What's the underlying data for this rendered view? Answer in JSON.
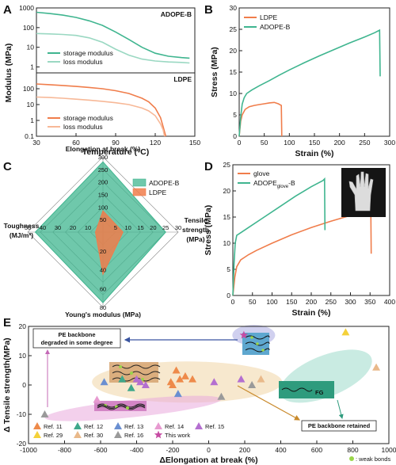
{
  "colors": {
    "adope": "#3fb58f",
    "adope_light": "#9ad8c2",
    "ldpe": "#f07d4b",
    "ldpe_light": "#f7b897"
  },
  "panels": {
    "A": "A",
    "B": "B",
    "C": "C",
    "D": "D",
    "E": "E"
  },
  "chart_data": [
    {
      "id": "A-top",
      "type": "line",
      "panel_label": "ADOPE-B",
      "xlim": [
        30,
        150
      ],
      "ylim_log": [
        0.5,
        1000
      ],
      "yscale": "log",
      "yticks": [
        "1000",
        "100",
        "10",
        "1"
      ],
      "legend": [
        "storage modulus",
        "loss modulus"
      ],
      "series": [
        {
          "name": "storage modulus",
          "x": [
            30,
            40,
            50,
            60,
            70,
            80,
            90,
            100,
            110,
            120,
            130,
            140,
            146
          ],
          "y": [
            600,
            520,
            430,
            330,
            220,
            130,
            60,
            25,
            10,
            5,
            3.5,
            3,
            2.8
          ]
        },
        {
          "name": "loss modulus",
          "x": [
            30,
            40,
            50,
            60,
            70,
            80,
            90,
            100,
            110,
            120,
            130,
            140,
            146
          ],
          "y": [
            50,
            48,
            45,
            40,
            30,
            18,
            8,
            4,
            2.5,
            2,
            1.8,
            1.7,
            1.6
          ]
        }
      ]
    },
    {
      "id": "A-bottom",
      "type": "line",
      "panel_label": "LDPE",
      "xlabel": "Temperature (°C)",
      "ylabel": "Modulus (MPa)",
      "xlim": [
        30,
        150
      ],
      "ylim_log": [
        0.1,
        1000
      ],
      "yscale": "log",
      "xticks": [
        "30",
        "60",
        "90",
        "120",
        "150"
      ],
      "yticks": [
        "100",
        "10",
        "1",
        "0.1"
      ],
      "legend": [
        "storage modulus",
        "loss modulus"
      ],
      "series": [
        {
          "name": "storage modulus",
          "x": [
            30,
            40,
            50,
            60,
            70,
            80,
            90,
            100,
            110,
            115,
            120,
            124,
            126,
            128
          ],
          "y": [
            200,
            180,
            160,
            140,
            120,
            100,
            75,
            50,
            25,
            15,
            6,
            1.5,
            0.4,
            0.1
          ]
        },
        {
          "name": "loss modulus",
          "x": [
            30,
            40,
            50,
            60,
            70,
            80,
            90,
            100,
            110,
            115,
            120,
            124,
            126,
            127
          ],
          "y": [
            30,
            28,
            25,
            22,
            19,
            16,
            13,
            10,
            6,
            4,
            2,
            0.6,
            0.25,
            0.1
          ]
        }
      ]
    },
    {
      "id": "B",
      "type": "line",
      "xlabel": "Strain (%)",
      "ylabel": "Stress (MPa)",
      "xlim": [
        0,
        300
      ],
      "ylim": [
        0,
        30
      ],
      "xticks": [
        "0",
        "50",
        "100",
        "150",
        "200",
        "250",
        "300"
      ],
      "yticks": [
        "0",
        "5",
        "10",
        "15",
        "20",
        "25",
        "30"
      ],
      "legend": [
        "LDPE",
        "ADOPE-B"
      ],
      "series": [
        {
          "name": "LDPE",
          "x": [
            0,
            3,
            6,
            12,
            20,
            30,
            40,
            50,
            60,
            70,
            78,
            84,
            85
          ],
          "y": [
            0,
            3.5,
            5,
            6.3,
            6.9,
            7.2,
            7.4,
            7.6,
            7.8,
            7.9,
            7.6,
            7.2,
            0
          ]
        },
        {
          "name": "ADOPE-B",
          "x": [
            0,
            3,
            6,
            10,
            15,
            25,
            40,
            60,
            80,
            100,
            130,
            160,
            190,
            220,
            250,
            270,
            280,
            281
          ],
          "y": [
            0,
            4.5,
            7.5,
            9,
            10,
            10.8,
            11.8,
            13,
            14.3,
            15.5,
            17.2,
            18.8,
            20.3,
            21.8,
            23.2,
            24.2,
            24.8,
            14
          ]
        }
      ]
    },
    {
      "id": "C",
      "type": "radar",
      "axes": [
        {
          "name": "Elongation at break (%)",
          "ticks": [
            "50",
            "100",
            "150",
            "200",
            "250",
            "300"
          ],
          "max": 300
        },
        {
          "name": "Tensile strength (MPa)",
          "ticks": [
            "5",
            "10",
            "15",
            "20",
            "25",
            "30"
          ],
          "max": 30
        },
        {
          "name": "Young's modulus (MPa)",
          "ticks": [
            "20",
            "40",
            "60",
            "80"
          ],
          "max": 80
        },
        {
          "name": "Toughness (MJ/m³)",
          "ticks": [
            "10",
            "20",
            "30",
            "40",
            "50"
          ],
          "max": 50
        }
      ],
      "legend": [
        "ADOPE-B",
        "LDPE"
      ],
      "series": [
        {
          "name": "ADOPE-B",
          "values": [
            280,
            25,
            75,
            45
          ]
        },
        {
          "name": "LDPE",
          "values": [
            85,
            8,
            45,
            5
          ]
        }
      ]
    },
    {
      "id": "D",
      "type": "line",
      "xlabel": "Strain (%)",
      "ylabel": "Stress (MPa)",
      "xlim": [
        0,
        400
      ],
      "ylim": [
        0,
        25
      ],
      "xticks": [
        "0",
        "50",
        "100",
        "150",
        "200",
        "250",
        "300",
        "350",
        "400"
      ],
      "yticks": [
        "0",
        "5",
        "10",
        "15",
        "20",
        "25"
      ],
      "legend": [
        "glove",
        "ADOPE"
      ],
      "legend_sub": "glove",
      "legend_tail": "-B",
      "series": [
        {
          "name": "glove",
          "x": [
            0,
            5,
            10,
            20,
            40,
            60,
            100,
            150,
            200,
            250,
            300,
            340,
            352,
            353
          ],
          "y": [
            0,
            3.5,
            5.5,
            6.8,
            7.8,
            8.6,
            10,
            11.6,
            13,
            14.2,
            15.3,
            16.2,
            16.5,
            8
          ]
        },
        {
          "name": "ADOPE-B",
          "x": [
            0,
            3,
            6,
            10,
            20,
            40,
            80,
            120,
            160,
            200,
            230,
            234,
            235
          ],
          "y": [
            0,
            6,
            10,
            11.5,
            12,
            13,
            15,
            17,
            19,
            20.8,
            22,
            22.3,
            12.5
          ]
        }
      ]
    },
    {
      "id": "E",
      "type": "scatter",
      "xlabel": "ΔElongation at break (%)",
      "ylabel": "Δ Tensile strength(MPa)",
      "xlim": [
        -1000,
        1000
      ],
      "ylim": [
        -20,
        20
      ],
      "xticks": [
        "-1000",
        "-800",
        "-600",
        "-400",
        "-200",
        "0",
        "200",
        "400",
        "600",
        "800",
        "1000"
      ],
      "yticks": [
        "20",
        "10",
        "0",
        "-10",
        "-20"
      ],
      "annotations": [
        "PE backbone degraded in some degree",
        "PE backbone retained",
        "FG",
        "● : weak bonds"
      ],
      "legend": [
        "Ref. 11",
        "Ref. 12",
        "Ref. 13",
        "Ref. 14",
        "Ref. 15",
        "Ref. 29",
        "Ref. 30",
        "Ref. 16",
        "This work"
      ],
      "series": [
        {
          "name": "Ref. 11",
          "points": [
            [
              -180,
              5
            ],
            [
              -160,
              2
            ],
            [
              -200,
              0
            ],
            [
              -210,
              1
            ],
            [
              -130,
              3
            ],
            [
              -90,
              2
            ]
          ]
        },
        {
          "name": "Ref. 12",
          "points": [
            [
              -480,
              2
            ],
            [
              -430,
              -1
            ]
          ]
        },
        {
          "name": "Ref. 13",
          "points": [
            [
              -580,
              1
            ],
            [
              -170,
              -3
            ]
          ]
        },
        {
          "name": "Ref. 14",
          "points": [
            [
              -620,
              -5
            ]
          ]
        },
        {
          "name": "Ref. 15",
          "points": [
            [
              -380,
              1
            ],
            [
              -350,
              0
            ],
            [
              -400,
              2
            ],
            [
              30,
              1
            ],
            [
              180,
              2
            ]
          ]
        },
        {
          "name": "Ref. 29",
          "points": [
            [
              760,
              18
            ]
          ]
        },
        {
          "name": "Ref. 30",
          "points": [
            [
              290,
              2
            ],
            [
              930,
              6
            ]
          ]
        },
        {
          "name": "Ref. 16",
          "points": [
            [
              -910,
              -10
            ],
            [
              70,
              -4
            ],
            [
              240,
              0
            ]
          ]
        },
        {
          "name": "This work",
          "points": [
            [
              195,
              17
            ]
          ]
        }
      ]
    }
  ]
}
